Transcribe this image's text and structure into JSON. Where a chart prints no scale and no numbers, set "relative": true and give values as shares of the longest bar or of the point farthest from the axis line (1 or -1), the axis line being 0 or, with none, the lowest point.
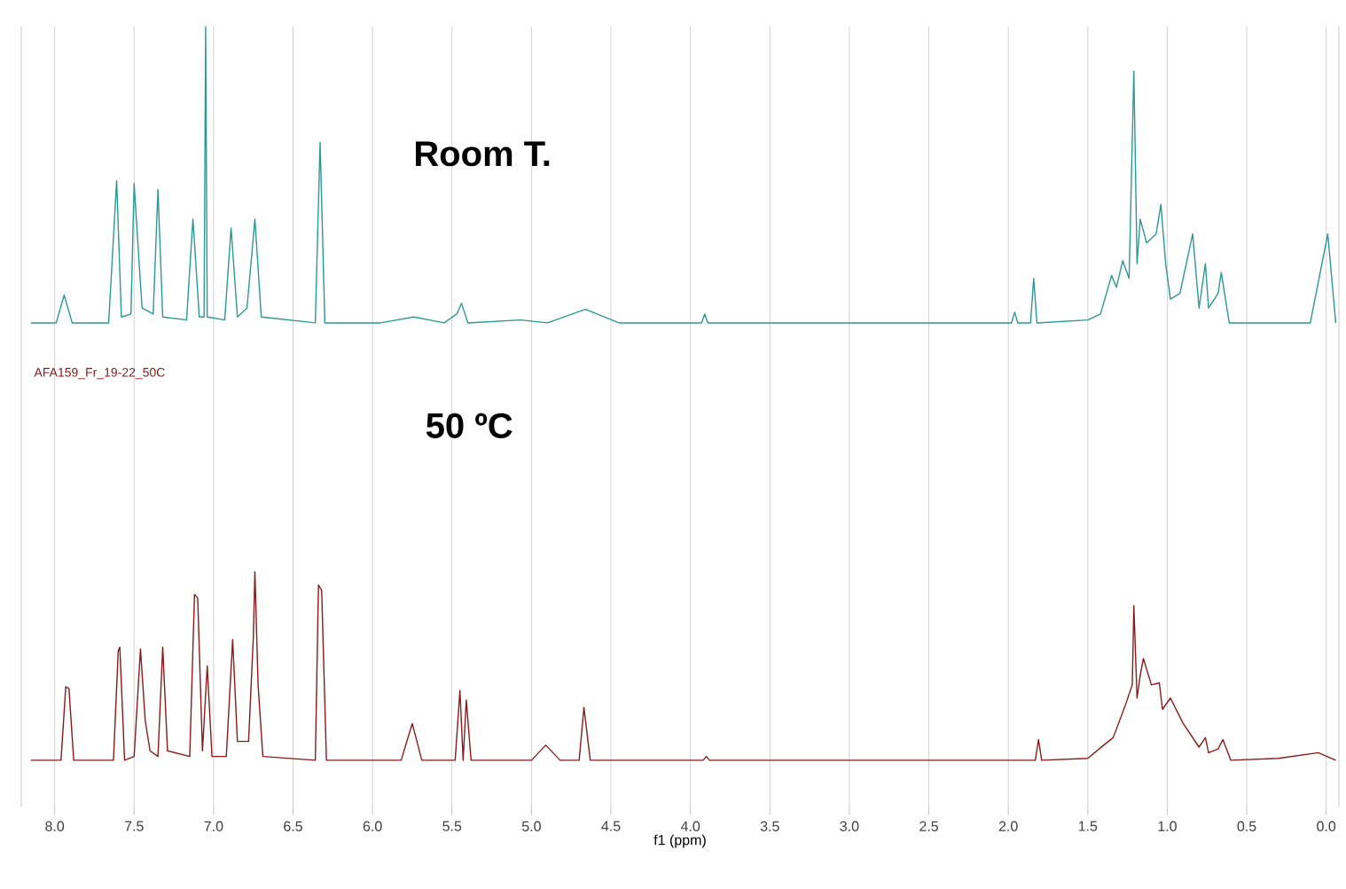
{
  "chart_data": [
    {
      "type": "line",
      "title": "Room T.",
      "relative": true,
      "grid": "x",
      "tick_labels": false,
      "xlim": [
        8.21,
        -0.08
      ],
      "xticks": [
        8,
        7.5,
        7,
        6.5,
        6,
        5.5,
        5,
        4.5,
        4,
        3.5,
        3,
        2.5,
        2,
        1.5,
        1,
        0.5,
        0
      ],
      "series": [
        {
          "color": "#2a9a94",
          "x": [
            8.15,
            7.99,
            7.94,
            7.89,
            7.66,
            7.61,
            7.58,
            7.52,
            7.5,
            7.48,
            7.45,
            7.38,
            7.35,
            7.32,
            7.17,
            7.13,
            7.09,
            7.06,
            7.05,
            7.04,
            6.93,
            6.89,
            6.85,
            6.79,
            6.74,
            6.7,
            6.36,
            6.33,
            6.3,
            5.95,
            5.74,
            5.55,
            5.47,
            5.44,
            5.4,
            5.07,
            4.9,
            4.66,
            4.45,
            3.93,
            3.91,
            3.89,
            1.98,
            1.96,
            1.94,
            1.86,
            1.84,
            1.82,
            1.5,
            1.42,
            1.35,
            1.32,
            1.28,
            1.24,
            1.21,
            1.19,
            1.17,
            1.13,
            1.07,
            1.04,
            1.01,
            0.98,
            0.92,
            0.84,
            0.8,
            0.76,
            0.74,
            0.68,
            0.66,
            0.61,
            0.1,
            -0.01,
            -0.06
          ],
          "values": [
            0,
            0,
            0.094,
            0,
            0,
            0.48,
            0.02,
            0.03,
            0.47,
            0.3,
            0.05,
            0.03,
            0.45,
            0.02,
            0.01,
            0.35,
            0.02,
            0.02,
            1.0,
            0.02,
            0.01,
            0.32,
            0.02,
            0.05,
            0.35,
            0.02,
            0,
            0.61,
            0,
            0,
            0.02,
            0,
            0.03,
            0.066,
            0,
            0.01,
            0,
            0.046,
            0,
            0,
            0.03,
            0,
            0,
            0.036,
            0,
            0,
            0.15,
            0,
            0.01,
            0.03,
            0.16,
            0.12,
            0.21,
            0.15,
            0.85,
            0.2,
            0.35,
            0.27,
            0.3,
            0.4,
            0.2,
            0.08,
            0.1,
            0.3,
            0.05,
            0.2,
            0.05,
            0.1,
            0.17,
            0,
            0,
            0.3,
            0
          ]
        }
      ]
    },
    {
      "type": "line",
      "title": "50 ºC",
      "relative": true,
      "grid": "x",
      "tick_labels": "x",
      "xlabel": "f1 (ppm)",
      "xlim": [
        8.21,
        -0.08
      ],
      "annotations": [
        "AFA159_Fr_19-22_50C"
      ],
      "xticks": [
        {
          "value": 8,
          "label": "8.0"
        },
        {
          "value": 7.5,
          "label": "7.5"
        },
        {
          "value": 7,
          "label": "7.0"
        },
        {
          "value": 6.5,
          "label": "6.5"
        },
        {
          "value": 6,
          "label": "6.0"
        },
        {
          "value": 5.5,
          "label": "5.5"
        },
        {
          "value": 5,
          "label": "5.0"
        },
        {
          "value": 4.5,
          "label": "4.5"
        },
        {
          "value": 4,
          "label": "4.0"
        },
        {
          "value": 3.5,
          "label": "3.5"
        },
        {
          "value": 3,
          "label": "3.0"
        },
        {
          "value": 2.5,
          "label": "2.5"
        },
        {
          "value": 2,
          "label": "2.0"
        },
        {
          "value": 1.5,
          "label": "1.5"
        },
        {
          "value": 1,
          "label": "1.0"
        },
        {
          "value": 0.5,
          "label": "0.5"
        },
        {
          "value": 0,
          "label": "0.0"
        }
      ],
      "series": [
        {
          "color": "#8b1a1a",
          "x": [
            8.15,
            7.96,
            7.93,
            7.91,
            7.88,
            7.63,
            7.6,
            7.59,
            7.56,
            7.5,
            7.46,
            7.43,
            7.4,
            7.35,
            7.32,
            7.29,
            7.15,
            7.12,
            7.1,
            7.07,
            7.04,
            7.01,
            6.92,
            6.88,
            6.85,
            6.78,
            6.75,
            6.74,
            6.72,
            6.69,
            6.36,
            6.34,
            6.32,
            6.29,
            5.82,
            5.75,
            5.69,
            5.48,
            5.45,
            5.43,
            5.41,
            5.38,
            5.0,
            4.91,
            4.82,
            4.7,
            4.67,
            4.63,
            3.92,
            3.9,
            3.88,
            1.83,
            1.81,
            1.79,
            1.5,
            1.4,
            1.34,
            1.26,
            1.22,
            1.21,
            1.19,
            1.17,
            1.15,
            1.1,
            1.05,
            1.03,
            0.98,
            0.9,
            0.8,
            0.76,
            0.74,
            0.68,
            0.65,
            0.6,
            0.3,
            0.05,
            -0.06
          ],
          "values": [
            0,
            0,
            0.39,
            0.38,
            0,
            0,
            0.58,
            0.6,
            0,
            0.02,
            0.59,
            0.21,
            0.05,
            0.02,
            0.6,
            0.05,
            0.02,
            0.88,
            0.86,
            0.05,
            0.5,
            0.02,
            0.02,
            0.64,
            0.1,
            0.1,
            0.65,
            1.0,
            0.4,
            0.02,
            0,
            0.93,
            0.9,
            0,
            0,
            0.195,
            0,
            0,
            0.37,
            0,
            0.32,
            0,
            0,
            0.08,
            0,
            0,
            0.28,
            0,
            0,
            0.02,
            0,
            0,
            0.11,
            0,
            0.01,
            0.08,
            0.12,
            0.3,
            0.4,
            0.82,
            0.33,
            0.45,
            0.54,
            0.4,
            0.41,
            0.27,
            0.33,
            0.195,
            0.07,
            0.12,
            0.04,
            0.06,
            0.11,
            0,
            0.01,
            0.04,
            0
          ]
        }
      ]
    }
  ]
}
